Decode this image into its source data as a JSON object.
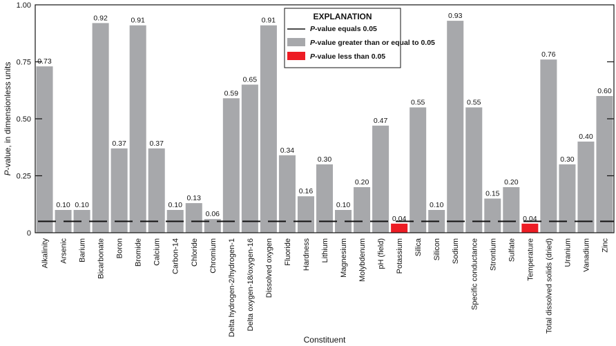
{
  "chart_data": {
    "type": "bar",
    "title": "",
    "xlabel": "Constituent",
    "ylabel_italic_part": "P",
    "ylabel_rest": "-value, in dimensionless units",
    "ylim": [
      0,
      1.0
    ],
    "yticks": [
      0,
      0.25,
      0.5,
      0.75,
      1.0
    ],
    "ytick_labels": [
      "0",
      "0.25",
      "0.50",
      "0.75",
      "1.00"
    ],
    "grid": false,
    "threshold": 0.05,
    "categories": [
      "Alkalinity",
      "Arsenic",
      "Barium",
      "Bicarbonate",
      "Boron",
      "Bromide",
      "Calcium",
      "Carbon-14",
      "Chloride",
      "Chromium",
      "Delta hydrogen-2/hydrogen-1",
      "Delta oxygen-18/oxygen-16",
      "Dissolved oxygen",
      "Fluoride",
      "Hardness",
      "Lithium",
      "Magnesium",
      "Molybdenum",
      "pH (field)",
      "Potassium",
      "Silica",
      "Silicon",
      "Sodium",
      "Specific conductance",
      "Strontium",
      "Sulfate",
      "Temperature",
      "Total dissolved solids (dried)",
      "Uranium",
      "Vanadium",
      "Zinc"
    ],
    "values": [
      0.73,
      0.1,
      0.1,
      0.92,
      0.37,
      0.91,
      0.37,
      0.1,
      0.13,
      0.06,
      0.59,
      0.65,
      0.91,
      0.34,
      0.16,
      0.3,
      0.1,
      0.2,
      0.47,
      0.04,
      0.55,
      0.1,
      0.93,
      0.55,
      0.15,
      0.2,
      0.04,
      0.76,
      0.3,
      0.4,
      0.6
    ],
    "value_labels": [
      "0.73",
      "0.10",
      "0.10",
      "0.92",
      "0.37",
      "0.91",
      "0.37",
      "0.10",
      "0.13",
      "0.06",
      "0.59",
      "0.65",
      "0.91",
      "0.34",
      "0.16",
      "0.30",
      "0.10",
      "0.20",
      "0.47",
      "0.04",
      "0.55",
      "0.10",
      "0.93",
      "0.55",
      "0.15",
      "0.20",
      "0.04",
      "0.76",
      "0.30",
      "0.40",
      "0.60"
    ],
    "colors": {
      "above": "#a7a8ab",
      "below": "#ed1c24",
      "threshold_line": "#111111",
      "axis": "#111111"
    },
    "legend": {
      "title": "EXPLANATION",
      "position": "top-center",
      "entries": [
        {
          "kind": "line",
          "italic": "P",
          "text": "-value equals 0.05"
        },
        {
          "kind": "gray",
          "italic": "P",
          "text": "-value greater than or equal to 0.05"
        },
        {
          "kind": "red",
          "italic": "P",
          "text": "-value less than 0.05"
        }
      ]
    }
  }
}
